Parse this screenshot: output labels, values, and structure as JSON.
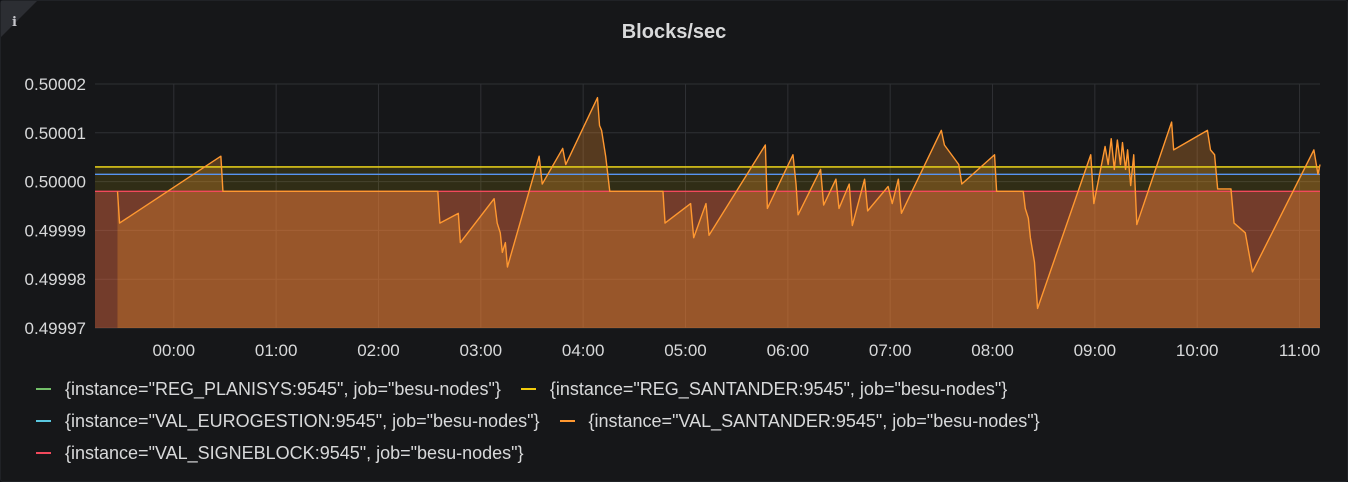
{
  "panel": {
    "title": "Blocks/sec",
    "info_icon": "info-icon"
  },
  "chart_data": {
    "type": "area",
    "title": "Blocks/sec",
    "xlabel": "",
    "ylabel": "",
    "x_tick_labels": [
      "00:00",
      "01:00",
      "02:00",
      "03:00",
      "04:00",
      "05:00",
      "06:00",
      "07:00",
      "08:00",
      "09:00",
      "10:00",
      "11:00"
    ],
    "y_tick_labels": [
      "0.49997",
      "0.49998",
      "0.49999",
      "0.50000",
      "0.50001",
      "0.50002"
    ],
    "ylim": [
      0.49997,
      0.50002
    ],
    "xlim_hours": [
      -0.77,
      11.2
    ],
    "grid": true,
    "legend_position": "bottom",
    "series": [
      {
        "name": "{instance=\"REG_PLANISYS:9545\", job=\"besu-nodes\"}",
        "color": "#73bf69",
        "points": [
          [
            -0.77,
            0.500003
          ],
          [
            11.2,
            0.500003
          ]
        ]
      },
      {
        "name": "{instance=\"REG_SANTANDER:9545\", job=\"besu-nodes\"}",
        "color": "#f2cc0c",
        "points": [
          [
            -0.77,
            0.500003
          ],
          [
            11.2,
            0.500003
          ]
        ]
      },
      {
        "name": "{instance=\"VAL_EUROGESTION:9545\", job=\"besu-nodes\"}",
        "color": "#5794f2",
        "points": [
          [
            -0.77,
            0.5000015
          ],
          [
            11.2,
            0.5000015
          ]
        ]
      },
      {
        "name": "{instance=\"VAL_SANTANDER:9545\", job=\"besu-nodes\"}",
        "color": "#ff9830",
        "points": [
          [
            -0.55,
            0.499998
          ],
          [
            -0.53,
            0.4999915
          ],
          [
            0.46,
            0.5000052
          ],
          [
            0.48,
            0.499998
          ],
          [
            2.58,
            0.499998
          ],
          [
            2.6,
            0.4999915
          ],
          [
            2.78,
            0.4999935
          ],
          [
            2.8,
            0.4999875
          ],
          [
            3.13,
            0.4999965
          ],
          [
            3.16,
            0.4999915
          ],
          [
            3.19,
            0.4999895
          ],
          [
            3.21,
            0.4999855
          ],
          [
            3.24,
            0.4999875
          ],
          [
            3.26,
            0.4999825
          ],
          [
            3.57,
            0.5000052
          ],
          [
            3.6,
            0.4999995
          ],
          [
            3.8,
            0.5000068
          ],
          [
            3.83,
            0.5000035
          ],
          [
            4.14,
            0.5000172
          ],
          [
            4.16,
            0.5000115
          ],
          [
            4.18,
            0.5000105
          ],
          [
            4.22,
            0.5000052
          ],
          [
            4.26,
            0.499998
          ],
          [
            4.78,
            0.499998
          ],
          [
            4.8,
            0.4999915
          ],
          [
            5.05,
            0.4999955
          ],
          [
            5.08,
            0.4999885
          ],
          [
            5.2,
            0.4999955
          ],
          [
            5.23,
            0.499989
          ],
          [
            5.78,
            0.5000075
          ],
          [
            5.8,
            0.4999945
          ],
          [
            6.05,
            0.5000055
          ],
          [
            6.08,
            0.4999995
          ],
          [
            6.1,
            0.4999932
          ],
          [
            6.32,
            0.5000025
          ],
          [
            6.35,
            0.4999952
          ],
          [
            6.47,
            0.5000005
          ],
          [
            6.5,
            0.4999945
          ],
          [
            6.6,
            0.4999995
          ],
          [
            6.63,
            0.499991
          ],
          [
            6.75,
            0.5000005
          ],
          [
            6.78,
            0.499994
          ],
          [
            6.98,
            0.499999
          ],
          [
            7.02,
            0.4999955
          ],
          [
            7.08,
            0.5000005
          ],
          [
            7.11,
            0.4999935
          ],
          [
            7.5,
            0.5000105
          ],
          [
            7.53,
            0.5000075
          ],
          [
            7.67,
            0.5000035
          ],
          [
            7.7,
            0.4999995
          ],
          [
            8.02,
            0.5000055
          ],
          [
            8.04,
            0.499998
          ],
          [
            8.3,
            0.499998
          ],
          [
            8.32,
            0.4999945
          ],
          [
            8.35,
            0.4999925
          ],
          [
            8.37,
            0.4999885
          ],
          [
            8.41,
            0.4999835
          ],
          [
            8.44,
            0.499974
          ],
          [
            8.96,
            0.5000055
          ],
          [
            8.99,
            0.4999955
          ],
          [
            9.1,
            0.5000072
          ],
          [
            9.13,
            0.5000035
          ],
          [
            9.16,
            0.5000088
          ],
          [
            9.19,
            0.5000025
          ],
          [
            9.22,
            0.5000085
          ],
          [
            9.25,
            0.5000035
          ],
          [
            9.27,
            0.500008
          ],
          [
            9.3,
            0.5000025
          ],
          [
            9.32,
            0.5000065
          ],
          [
            9.35,
            0.4999992
          ],
          [
            9.38,
            0.5000055
          ],
          [
            9.41,
            0.4999912
          ],
          [
            9.75,
            0.5000122
          ],
          [
            9.77,
            0.5000065
          ],
          [
            10.1,
            0.5000105
          ],
          [
            10.13,
            0.5000065
          ],
          [
            10.17,
            0.5000055
          ],
          [
            10.2,
            0.4999985
          ],
          [
            10.33,
            0.4999985
          ],
          [
            10.36,
            0.4999915
          ],
          [
            10.47,
            0.4999895
          ],
          [
            10.5,
            0.499986
          ],
          [
            10.54,
            0.4999815
          ],
          [
            11.14,
            0.5000065
          ],
          [
            11.18,
            0.5000015
          ],
          [
            11.2,
            0.5000035
          ]
        ]
      },
      {
        "name": "{instance=\"VAL_SIGNEBLOCK:9545\", job=\"besu-nodes\"}",
        "color": "#f2495c",
        "points": [
          [
            -0.77,
            0.499998
          ],
          [
            11.2,
            0.499998
          ]
        ]
      }
    ]
  }
}
